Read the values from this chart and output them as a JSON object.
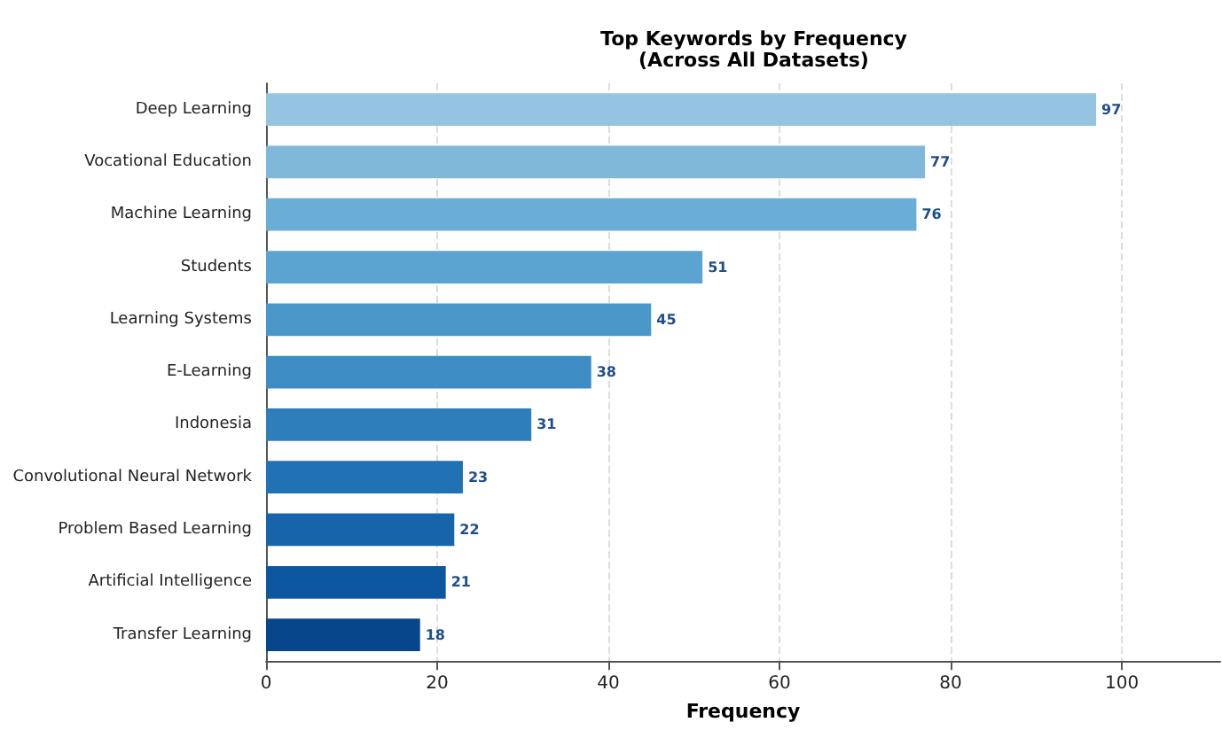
{
  "chart_data": {
    "type": "bar",
    "orientation": "horizontal",
    "title": "Top Keywords by Frequency\n(Across All Datasets)",
    "xlabel": "Frequency",
    "categories": [
      "Deep Learning",
      "Vocational Education",
      "Machine Learning",
      "Students",
      "Learning Systems",
      "E-Learning",
      "Indonesia",
      "Convolutional Neural Network",
      "Problem Based Learning",
      "Artificial Intelligence",
      "Transfer Learning"
    ],
    "values": [
      97,
      77,
      76,
      51,
      45,
      38,
      31,
      23,
      22,
      21,
      18
    ],
    "colors": [
      "#94c4df",
      "#80b8da",
      "#6aaed6",
      "#5ba3d0",
      "#4a98c9",
      "#3d8dc4",
      "#2f7ebc",
      "#2171b5",
      "#1864aa",
      "#0d57a1",
      "#08468b"
    ],
    "xlim": [
      0,
      111.5
    ],
    "xticks": [
      0,
      20,
      40,
      60,
      80,
      100
    ],
    "grid": "x",
    "data_labels": true
  }
}
